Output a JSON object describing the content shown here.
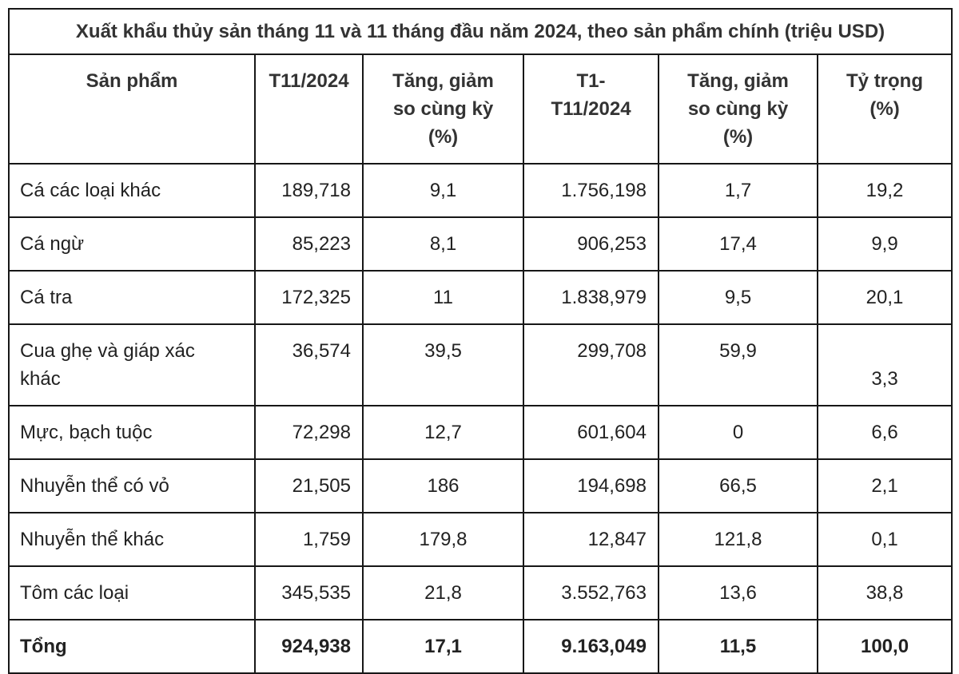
{
  "title": "Xuất khẩu thủy sản tháng 11 và 11 tháng đầu năm 2024, theo sản phẩm chính (triệu USD)",
  "table": {
    "headers": {
      "product": "Sản phẩm",
      "t11": "T11/2024",
      "t11_growth": "Tăng, giảm\nso cùng kỳ\n(%)",
      "t1_t11": "T1-\nT11/2024",
      "t1_t11_growth": "Tăng, giảm\nso cùng kỳ\n(%)",
      "share": "Tỷ trọng\n(%)"
    },
    "rows": [
      {
        "product": "Cá các loại khác",
        "t11": "189,718",
        "t11_growth": "9,1",
        "t1_t11": "1.756,198",
        "t1_t11_growth": "1,7",
        "share": "19,2"
      },
      {
        "product": "Cá ngừ",
        "t11": "85,223",
        "t11_growth": "8,1",
        "t1_t11": "906,253",
        "t1_t11_growth": "17,4",
        "share": "9,9"
      },
      {
        "product": "Cá tra",
        "t11": "172,325",
        "t11_growth": "11",
        "t1_t11": "1.838,979",
        "t1_t11_growth": "9,5",
        "share": "20,1"
      },
      {
        "product": "Cua ghẹ và giáp xác khác",
        "t11": "36,574",
        "t11_growth": "39,5",
        "t1_t11": "299,708",
        "t1_t11_growth": "59,9",
        "share": "3,3"
      },
      {
        "product": "Mực, bạch tuộc",
        "t11": "72,298",
        "t11_growth": "12,7",
        "t1_t11": "601,604",
        "t1_t11_growth": "0",
        "share": "6,6"
      },
      {
        "product": "Nhuyễn thể có vỏ",
        "t11": "21,505",
        "t11_growth": "186",
        "t1_t11": "194,698",
        "t1_t11_growth": "66,5",
        "share": "2,1"
      },
      {
        "product": "Nhuyễn thể khác",
        "t11": "1,759",
        "t11_growth": "179,8",
        "t1_t11": "12,847",
        "t1_t11_growth": "121,8",
        "share": "0,1"
      },
      {
        "product": "Tôm các loại",
        "t11": "345,535",
        "t11_growth": "21,8",
        "t1_t11": "3.552,763",
        "t1_t11_growth": "13,6",
        "share": "38,8"
      }
    ],
    "total": {
      "product": "Tổng",
      "t11": "924,938",
      "t11_growth": "17,1",
      "t1_t11": "9.163,049",
      "t1_t11_growth": "11,5",
      "share": "100,0"
    }
  },
  "colors": {
    "text": "#222222",
    "heading_text": "#333333",
    "border": "#171717",
    "background": "#ffffff"
  }
}
